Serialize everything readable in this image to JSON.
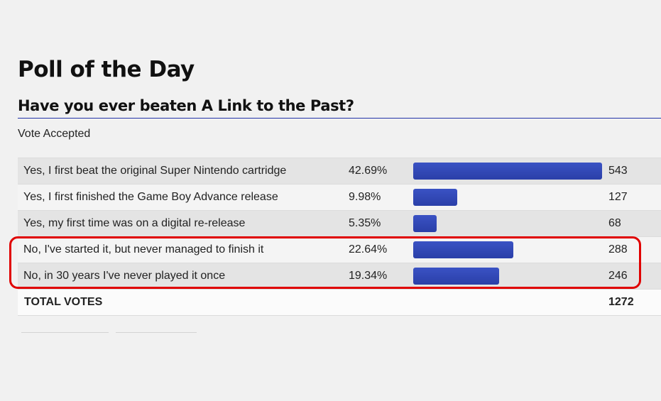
{
  "poll": {
    "title": "Poll of the Day",
    "question": "Have you ever beaten A Link to the Past?",
    "status": "Vote Accepted",
    "options": [
      {
        "label": "Yes, I first beat the original Super Nintendo cartridge",
        "percent": "42.69%",
        "count": "543",
        "fraction": 0.4269
      },
      {
        "label": "Yes, I first finished the Game Boy Advance release",
        "percent": "9.98%",
        "count": "127",
        "fraction": 0.0998
      },
      {
        "label": "Yes, my first time was on a digital re-release",
        "percent": "5.35%",
        "count": "68",
        "fraction": 0.0535
      },
      {
        "label": "No, I've started it, but never managed to finish it",
        "percent": "22.64%",
        "count": "288",
        "fraction": 0.2264
      },
      {
        "label": "No, in 30 years I've never played it once",
        "percent": "19.34%",
        "count": "246",
        "fraction": 0.1934
      }
    ],
    "total_label": "TOTAL VOTES",
    "total_count": "1272",
    "max_fraction": 0.4269
  },
  "colors": {
    "bar": "#2a3fa8",
    "rule": "#2233a8",
    "highlight": "#e00000"
  }
}
